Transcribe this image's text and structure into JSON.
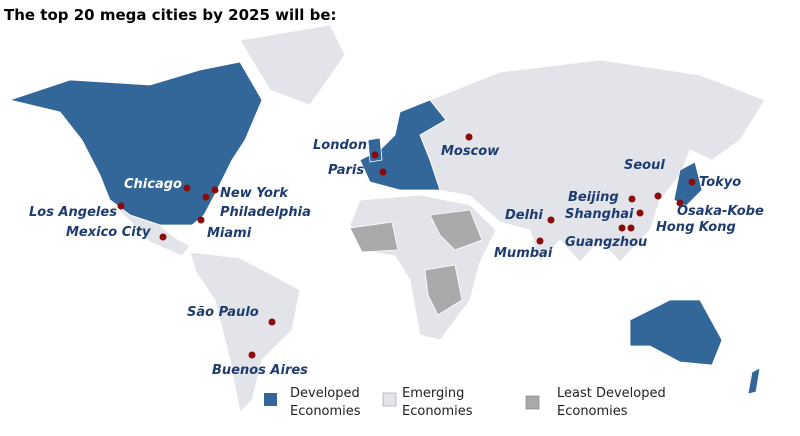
{
  "title": "The top 20 mega cities by 2025 will be:",
  "cities": [
    {
      "label": "Chicago"
    },
    {
      "label": "New York"
    },
    {
      "label": "Philadelphia"
    },
    {
      "label": "Los Angeles"
    },
    {
      "label": "Mexico City"
    },
    {
      "label": "Miami"
    },
    {
      "label": "London"
    },
    {
      "label": "Paris"
    },
    {
      "label": "Moscow"
    },
    {
      "label": "Seoul"
    },
    {
      "label": "Tokyo"
    },
    {
      "label": "Beijing"
    },
    {
      "label": "Shanghai"
    },
    {
      "label": "Osaka-Kobe"
    },
    {
      "label": "Hong Kong"
    },
    {
      "label": "Delhi"
    },
    {
      "label": "Guangzhou"
    },
    {
      "label": "Mumbai"
    },
    {
      "label": "São Paulo"
    },
    {
      "label": "Buenos Aires"
    }
  ],
  "legend": [
    {
      "lines": [
        "Developed",
        "Economies"
      ]
    },
    {
      "lines": [
        "Emerging",
        "Economies"
      ]
    },
    {
      "lines": [
        "Least Developed",
        "Economies"
      ]
    }
  ]
}
